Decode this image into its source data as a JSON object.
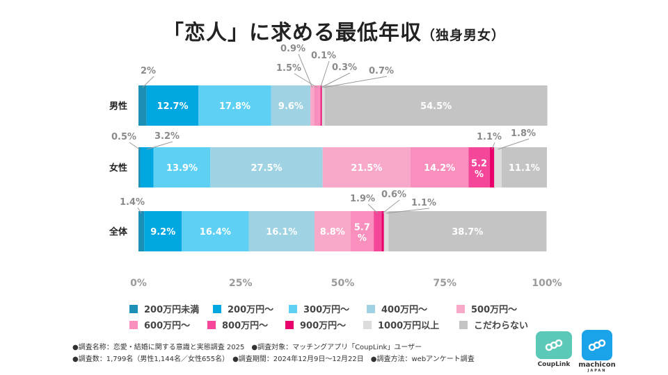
{
  "title": {
    "main": "「恋人」に求める最低年収",
    "sub": "（独身男女）"
  },
  "chart_data": {
    "type": "bar",
    "orientation": "horizontal-stacked-100",
    "title": "「恋人」に求める最低年収（独身男女）",
    "categories": [
      "男性",
      "女性",
      "全体"
    ],
    "xlim": [
      0,
      100
    ],
    "x_ticks": [
      "0%",
      "25%",
      "50%",
      "75%",
      "100%"
    ],
    "legend_position": "bottom",
    "series": [
      {
        "name": "200万円未満",
        "color": "#1b8fb5",
        "values": [
          2,
          0.5,
          1.4
        ]
      },
      {
        "name": "200万円〜",
        "color": "#00a7e1",
        "values": [
          12.7,
          3.2,
          9.2
        ]
      },
      {
        "name": "300万円〜",
        "color": "#5dd0f4",
        "values": [
          17.8,
          13.9,
          16.4
        ]
      },
      {
        "name": "400万円〜",
        "color": "#9fd3e3",
        "values": [
          9.6,
          27.5,
          16.1
        ]
      },
      {
        "name": "500万円〜",
        "color": "#f8a8c8",
        "values": [
          0.9,
          21.5,
          8.8
        ]
      },
      {
        "name": "600万円〜",
        "color": "#f98fbd",
        "values": [
          1.5,
          14.2,
          5.7
        ]
      },
      {
        "name": "800万円〜",
        "color": "#f5479a",
        "values": [
          0.1,
          5.2,
          1.9
        ]
      },
      {
        "name": "900万円〜",
        "color": "#e8006c",
        "values": [
          0.3,
          1.1,
          0.6
        ]
      },
      {
        "name": "1000万円以上",
        "color": "#dcdcdc",
        "values": [
          0.7,
          1.8,
          1.1
        ]
      },
      {
        "name": "こだわらない",
        "color": "#c4c4c4",
        "values": [
          54.5,
          11.1,
          38.7
        ]
      }
    ],
    "labels": [
      [
        "2%",
        "12.7%",
        "17.8%",
        "9.6%",
        "0.9%",
        "1.5%",
        "0.1%",
        "0.3%",
        "0.7%",
        "54.5%"
      ],
      [
        "0.5%",
        "3.2%",
        "13.9%",
        "27.5%",
        "21.5%",
        "14.2%",
        "5.2\n%",
        "1.1%",
        "1.8%",
        "11.1%"
      ],
      [
        "1.4%",
        "9.2%",
        "16.4%",
        "16.1%",
        "8.8%",
        "5.7\n%",
        "1.9%",
        "0.6%",
        "1.1%",
        "38.7%"
      ]
    ]
  },
  "footnotes": [
    "●調査名称：恋愛・結婚に関する意識と実態調査 2025　●調査対象：マッチングアプリ「CoupLink」ユーザー",
    "●調査数：1,799名（男性1,144名／女性655名）　●調査期間：2024年12月9日〜12月22日　●調査方法：webアンケート調査"
  ],
  "logos": [
    {
      "name": "CoupLink",
      "color": "#5cc9b8"
    },
    {
      "name": "machicon",
      "sub": "JAPAN",
      "color": "#1aa3e8"
    }
  ]
}
